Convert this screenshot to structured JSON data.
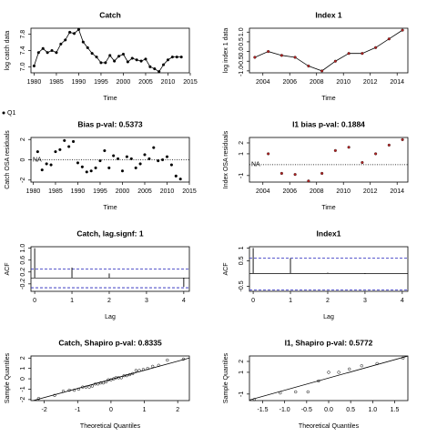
{
  "chart_data": [
    {
      "type": "line",
      "title": "Catch",
      "title_color": "#000000",
      "x_label": "Time",
      "y_label": "log catch data",
      "color": "#000000",
      "x": [
        1980,
        1981,
        1982,
        1983,
        1984,
        1985,
        1986,
        1987,
        1988,
        1989,
        1990,
        1991,
        1992,
        1993,
        1994,
        1995,
        1996,
        1997,
        1998,
        1999,
        2000,
        2001,
        2002,
        2003,
        2004,
        2005,
        2006,
        2007,
        2008,
        2009,
        2010,
        2011,
        2012,
        2013
      ],
      "values": [
        7.02,
        7.35,
        7.45,
        7.35,
        7.4,
        7.35,
        7.56,
        7.66,
        7.85,
        7.82,
        7.92,
        7.61,
        7.47,
        7.33,
        7.24,
        7.1,
        7.1,
        7.28,
        7.14,
        7.26,
        7.31,
        7.12,
        7.21,
        7.17,
        7.14,
        7.19,
        7.0,
        6.95,
        6.88,
        7.05,
        7.17,
        7.24,
        7.24,
        7.24
      ],
      "xlim": [
        1979.3,
        2014.8
      ],
      "ylim": [
        6.85,
        7.95
      ],
      "xticks": [
        1980,
        1985,
        1990,
        1995,
        2000,
        2005,
        2010,
        2015
      ],
      "yticks": [
        {
          "value": 7.0,
          "label": "7.0"
        },
        7.4,
        7.8
      ]
    },
    {
      "type": "line",
      "title": "Index 1",
      "title_color": "#000000",
      "x_label": "Time",
      "y_label": "log index 1 data",
      "color": "#b22222",
      "x": [
        2003.4,
        2004.4,
        2005.4,
        2006.4,
        2007.4,
        2008.4,
        2009.4,
        2010.4,
        2011.4,
        2012.4,
        2013.4,
        2014.4
      ],
      "values": [
        -0.3,
        0.0,
        -0.2,
        -0.3,
        -0.75,
        -1.0,
        -0.5,
        -0.1,
        -0.1,
        0.2,
        0.65,
        1.1
      ],
      "xlim": [
        2003,
        2014.8
      ],
      "ylim": [
        -1.1,
        1.2
      ],
      "xticks": [
        2004,
        2006,
        2008,
        2010,
        2012,
        2014
      ],
      "yticks": [
        {
          "value": -1,
          "label": "-1.0"
        },
        {
          "value": -0.5,
          "label": "-0.5"
        },
        {
          "value": 0,
          "label": "0.0"
        },
        {
          "value": 0.5,
          "label": "0.5"
        },
        {
          "value": 1,
          "label": "1.0"
        }
      ]
    },
    {
      "type": "residual",
      "title": "Bias p-val: 0.5373",
      "title_color": "#2e9a2e",
      "x_label": "Time",
      "y_label": "Catch OSA residuals",
      "annotation": "NA",
      "x": [
        1981,
        1982,
        1983,
        1984,
        1985,
        1986,
        1987,
        1988,
        1989,
        1990,
        1991,
        1992,
        1993,
        1994,
        1995,
        1996,
        1997,
        1998,
        1999,
        2000,
        2001,
        2002,
        2003,
        2004,
        2005,
        2006,
        2007,
        2008,
        2009,
        2010,
        2011,
        2012,
        2013
      ],
      "series": [
        {
          "name": "Q1",
          "color": "#000000",
          "values": [
            0.8,
            -1.0,
            -0.4,
            -0.5,
            0.8,
            1.0,
            1.9,
            1.3,
            1.8,
            -0.3,
            -0.7,
            -1.2,
            -1.1,
            -0.8,
            -0.1,
            0.9,
            -0.8,
            0.4,
            0.1,
            -1.1,
            0.3,
            0.1,
            -0.8,
            -0.4,
            0.5,
            0.1,
            1.2,
            -0.1,
            0.0,
            0.3,
            -0.5,
            -1.6,
            -1.9
          ]
        }
      ],
      "xlim": [
        1979.5,
        2015
      ],
      "ylim": [
        -2.2,
        2.2
      ],
      "xticks": [
        1980,
        1985,
        1990,
        1995,
        2000,
        2005,
        2010,
        2015
      ],
      "yticks": [
        -2,
        0,
        2
      ]
    },
    {
      "type": "residual",
      "title": "I1 bias p-val: 0.1884",
      "title_color": "#2e9a2e",
      "x_label": "Time",
      "y_label": "Index OSA residuals",
      "annotation": "NA",
      "color": "#b22222",
      "x": [
        2004.4,
        2005.4,
        2006.4,
        2007.4,
        2008.4,
        2009.4,
        2010.4,
        2011.4,
        2012.4,
        2013.4,
        2014.4
      ],
      "values": [
        1.0,
        -0.8,
        -0.9,
        -1.5,
        -0.8,
        1.3,
        1.6,
        0.2,
        1.0,
        1.8,
        2.3
      ],
      "xlim": [
        2003,
        2014.8
      ],
      "ylim": [
        -1.6,
        2.5
      ],
      "xticks": [
        2004,
        2006,
        2008,
        2010,
        2012,
        2014
      ],
      "yticks": [
        -1,
        1,
        2
      ]
    },
    {
      "type": "acf",
      "title": "Catch, lag.signf: 1",
      "title_color": "#ff0000",
      "x_label": "Lag",
      "y_label": "ACF",
      "x": [
        0,
        1,
        2,
        3,
        4
      ],
      "values": [
        1.0,
        0.35,
        0.15,
        0.0,
        -0.3
      ],
      "conf": [
        0.3,
        -0.33
      ],
      "xlim": [
        -0.1,
        4.15
      ],
      "ylim": [
        -0.45,
        1.05
      ],
      "xticks": [
        0,
        1,
        2,
        3,
        4
      ],
      "yticks": [
        {
          "value": -0.2,
          "label": "-0.2"
        },
        0.2,
        0.6,
        {
          "value": 1,
          "label": "1.0"
        }
      ]
    },
    {
      "type": "acf",
      "title": "Index1",
      "title_color": "#2e9a2e",
      "x_label": "Lag",
      "y_label": "ACF",
      "x": [
        0,
        1,
        2,
        3
      ],
      "values": [
        1.0,
        0.6,
        0.03,
        -0.02
      ],
      "conf": [
        0.6,
        -0.65
      ],
      "xlim": [
        -0.1,
        4.15
      ],
      "ylim": [
        -0.7,
        1.05
      ],
      "xticks": [
        0,
        1,
        2,
        3,
        4
      ],
      "yticks": [
        -0.5,
        0.5,
        1
      ]
    },
    {
      "type": "qq",
      "title": "Catch, Shapiro p-val: 0.8335",
      "title_color": "#2e9a2e",
      "x_label": "Theoretical Quantiles",
      "y_label": "Sample Quantiles",
      "x": [
        -2.17,
        -1.69,
        -1.43,
        -1.25,
        -1.1,
        -0.97,
        -0.85,
        -0.75,
        -0.65,
        -0.56,
        -0.47,
        -0.39,
        -0.31,
        -0.23,
        -0.15,
        -0.08,
        0,
        0.08,
        0.15,
        0.23,
        0.31,
        0.39,
        0.47,
        0.56,
        0.65,
        0.75,
        0.85,
        0.97,
        1.1,
        1.25,
        1.43,
        1.69,
        2.17
      ],
      "values": [
        -1.9,
        -1.6,
        -1.2,
        -1.1,
        -1.1,
        -1.0,
        -0.8,
        -0.8,
        -0.8,
        -0.7,
        -0.5,
        -0.5,
        -0.4,
        -0.4,
        -0.3,
        -0.1,
        -0.1,
        0.0,
        0.1,
        0.1,
        0.1,
        0.3,
        0.3,
        0.4,
        0.5,
        0.8,
        0.8,
        0.9,
        1.0,
        1.2,
        1.3,
        1.8,
        1.9
      ],
      "xlim": [
        -2.4,
        2.35
      ],
      "ylim": [
        -2.1,
        2.2
      ],
      "xticks": [
        -2,
        -1,
        0,
        1,
        2
      ],
      "yticks": [
        -2,
        -1,
        0,
        1,
        2
      ]
    },
    {
      "type": "qq",
      "title": "I1, Shapiro p-val: 0.5772",
      "title_color": "#2e9a2e",
      "x_label": "Theoretical Quantiles",
      "y_label": "Sample Quantiles",
      "x": [
        -1.69,
        -1.1,
        -0.75,
        -0.47,
        -0.23,
        0,
        0.23,
        0.47,
        0.75,
        1.1,
        1.69
      ],
      "values": [
        -1.5,
        -0.9,
        -0.8,
        -0.8,
        0.2,
        1.0,
        1.0,
        1.3,
        1.6,
        1.8,
        2.3
      ],
      "xlim": [
        -1.8,
        1.8
      ],
      "ylim": [
        -1.6,
        2.5
      ],
      "xticks": [
        {
          "value": -1.5,
          "label": "-1.5"
        },
        {
          "value": -1,
          "label": "-1.0"
        },
        {
          "value": -0.5,
          "label": "-0.5"
        },
        {
          "value": 0,
          "label": "0.0"
        },
        0.5,
        {
          "value": 1,
          "label": "1.0"
        },
        1.5
      ],
      "yticks": [
        -1,
        1,
        2
      ]
    }
  ]
}
